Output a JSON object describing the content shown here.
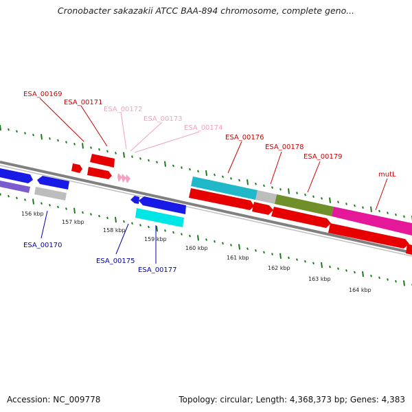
{
  "title": "Cronobacter sakazakii ATCC BAA-894 chromosome, complete geno...",
  "footer": {
    "accession": "Accession: NC_009778",
    "topology": "Topology: circular; Length: 4,368,373 bp; Genes: 4,383"
  },
  "colors": {
    "forward_label": "#cc0000",
    "faded_label": "#f4a0c0",
    "reverse_label": "#0000aa",
    "backbone": "#808080",
    "tick": "#1a7a1a"
  },
  "kbp_labels": [
    "156 kbp",
    "157 kbp",
    "158 kbp",
    "159 kbp",
    "160 kbp",
    "161 kbp",
    "162 kbp",
    "163 kbp",
    "164 kbp"
  ],
  "gene_labels": {
    "esa_00169": "ESA_00169",
    "esa_00171": "ESA_00171",
    "esa_00172": "ESA_00172",
    "esa_00173": "ESA_00173",
    "esa_00174": "ESA_00174",
    "esa_00176": "ESA_00176",
    "esa_00178": "ESA_00178",
    "esa_00179": "ESA_00179",
    "mutl": "mutL",
    "esa_00170": "ESA_00170",
    "esa_00175": "ESA_00175",
    "esa_00177": "ESA_00177"
  }
}
